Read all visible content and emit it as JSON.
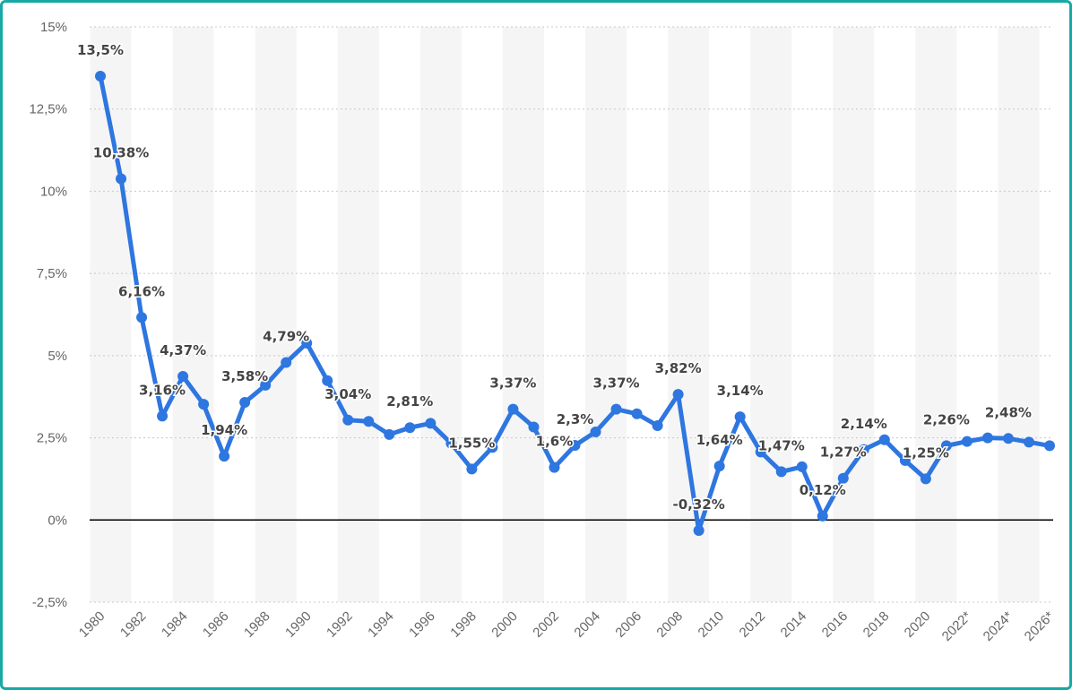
{
  "chart_data": {
    "type": "line",
    "title": "",
    "xlabel": "",
    "ylabel": "",
    "x": [
      "1980",
      "1981",
      "1982",
      "1983",
      "1984",
      "1985",
      "1986",
      "1987",
      "1988",
      "1989",
      "1990",
      "1991",
      "1992",
      "1993",
      "1994",
      "1995",
      "1996",
      "1997",
      "1998",
      "1999",
      "2000",
      "2001",
      "2002",
      "2003",
      "2004",
      "2005",
      "2006",
      "2007",
      "2008",
      "2009",
      "2010",
      "2011",
      "2012",
      "2013",
      "2014",
      "2015",
      "2016",
      "2017",
      "2018",
      "2019",
      "2020",
      "2021",
      "2022*",
      "2023*",
      "2024*",
      "2025*",
      "2026*"
    ],
    "x_tick_labels": [
      "1980",
      "1982",
      "1984",
      "1986",
      "1988",
      "1990",
      "1992",
      "1994",
      "1996",
      "1998",
      "2000",
      "2002",
      "2004",
      "2006",
      "2008",
      "2010",
      "2012",
      "2014",
      "2016",
      "2018",
      "2020",
      "2022*",
      "2024*",
      "2026*"
    ],
    "series": [
      {
        "values": [
          13.5,
          10.38,
          6.16,
          3.16,
          4.37,
          3.52,
          1.94,
          3.58,
          4.1,
          4.79,
          5.38,
          4.24,
          3.04,
          3.0,
          2.6,
          2.81,
          2.94,
          2.33,
          1.55,
          2.21,
          3.37,
          2.83,
          1.6,
          2.27,
          2.68,
          3.37,
          3.23,
          2.87,
          3.82,
          -0.32,
          1.64,
          3.14,
          2.07,
          1.47,
          1.62,
          0.12,
          1.27,
          2.14,
          2.44,
          1.81,
          1.25,
          2.26,
          2.39,
          2.5,
          2.48,
          2.37,
          2.26
        ],
        "color": "#2e76e0"
      }
    ],
    "data_labels": [
      {
        "index": 0,
        "text": "13,5%"
      },
      {
        "index": 1,
        "text": "10,38%"
      },
      {
        "index": 2,
        "text": "6,16%"
      },
      {
        "index": 3,
        "text": "3,16%"
      },
      {
        "index": 4,
        "text": "4,37%"
      },
      {
        "index": 6,
        "text": "1,94%"
      },
      {
        "index": 7,
        "text": "3,58%"
      },
      {
        "index": 9,
        "text": "4,79%"
      },
      {
        "index": 12,
        "text": "3,04%"
      },
      {
        "index": 15,
        "text": "2,81%"
      },
      {
        "index": 18,
        "text": "1,55%"
      },
      {
        "index": 20,
        "text": "3,37%"
      },
      {
        "index": 22,
        "text": "1,6%"
      },
      {
        "index": 23,
        "text": "2,3%"
      },
      {
        "index": 25,
        "text": "3,37%"
      },
      {
        "index": 28,
        "text": "3,82%"
      },
      {
        "index": 29,
        "text": "-0,32%"
      },
      {
        "index": 30,
        "text": "1,64%"
      },
      {
        "index": 31,
        "text": "3,14%"
      },
      {
        "index": 33,
        "text": "1,47%"
      },
      {
        "index": 35,
        "text": "0,12%"
      },
      {
        "index": 36,
        "text": "1,27%"
      },
      {
        "index": 37,
        "text": "2,14%"
      },
      {
        "index": 40,
        "text": "1,25%"
      },
      {
        "index": 41,
        "text": "2,26%"
      },
      {
        "index": 44,
        "text": "2,48%"
      }
    ],
    "y_ticks": [
      15,
      12.5,
      10,
      7.5,
      5,
      2.5,
      0,
      -2.5
    ],
    "y_tick_labels": [
      "15%",
      "12,5%",
      "10%",
      "7,5%",
      "5%",
      "2,5%",
      "0%",
      "-2,5%"
    ],
    "ylim": [
      -2.5,
      15
    ],
    "grid": true,
    "zero_line": true,
    "alternating_column_bands": true
  },
  "colors": {
    "frame_border": "#17a9a5",
    "line": "#2e76e0",
    "band": "#f5f5f5",
    "grid": "#c8c8c8",
    "zero_line": "#000000",
    "tick_text": "#666666",
    "label_text": "#444444"
  }
}
